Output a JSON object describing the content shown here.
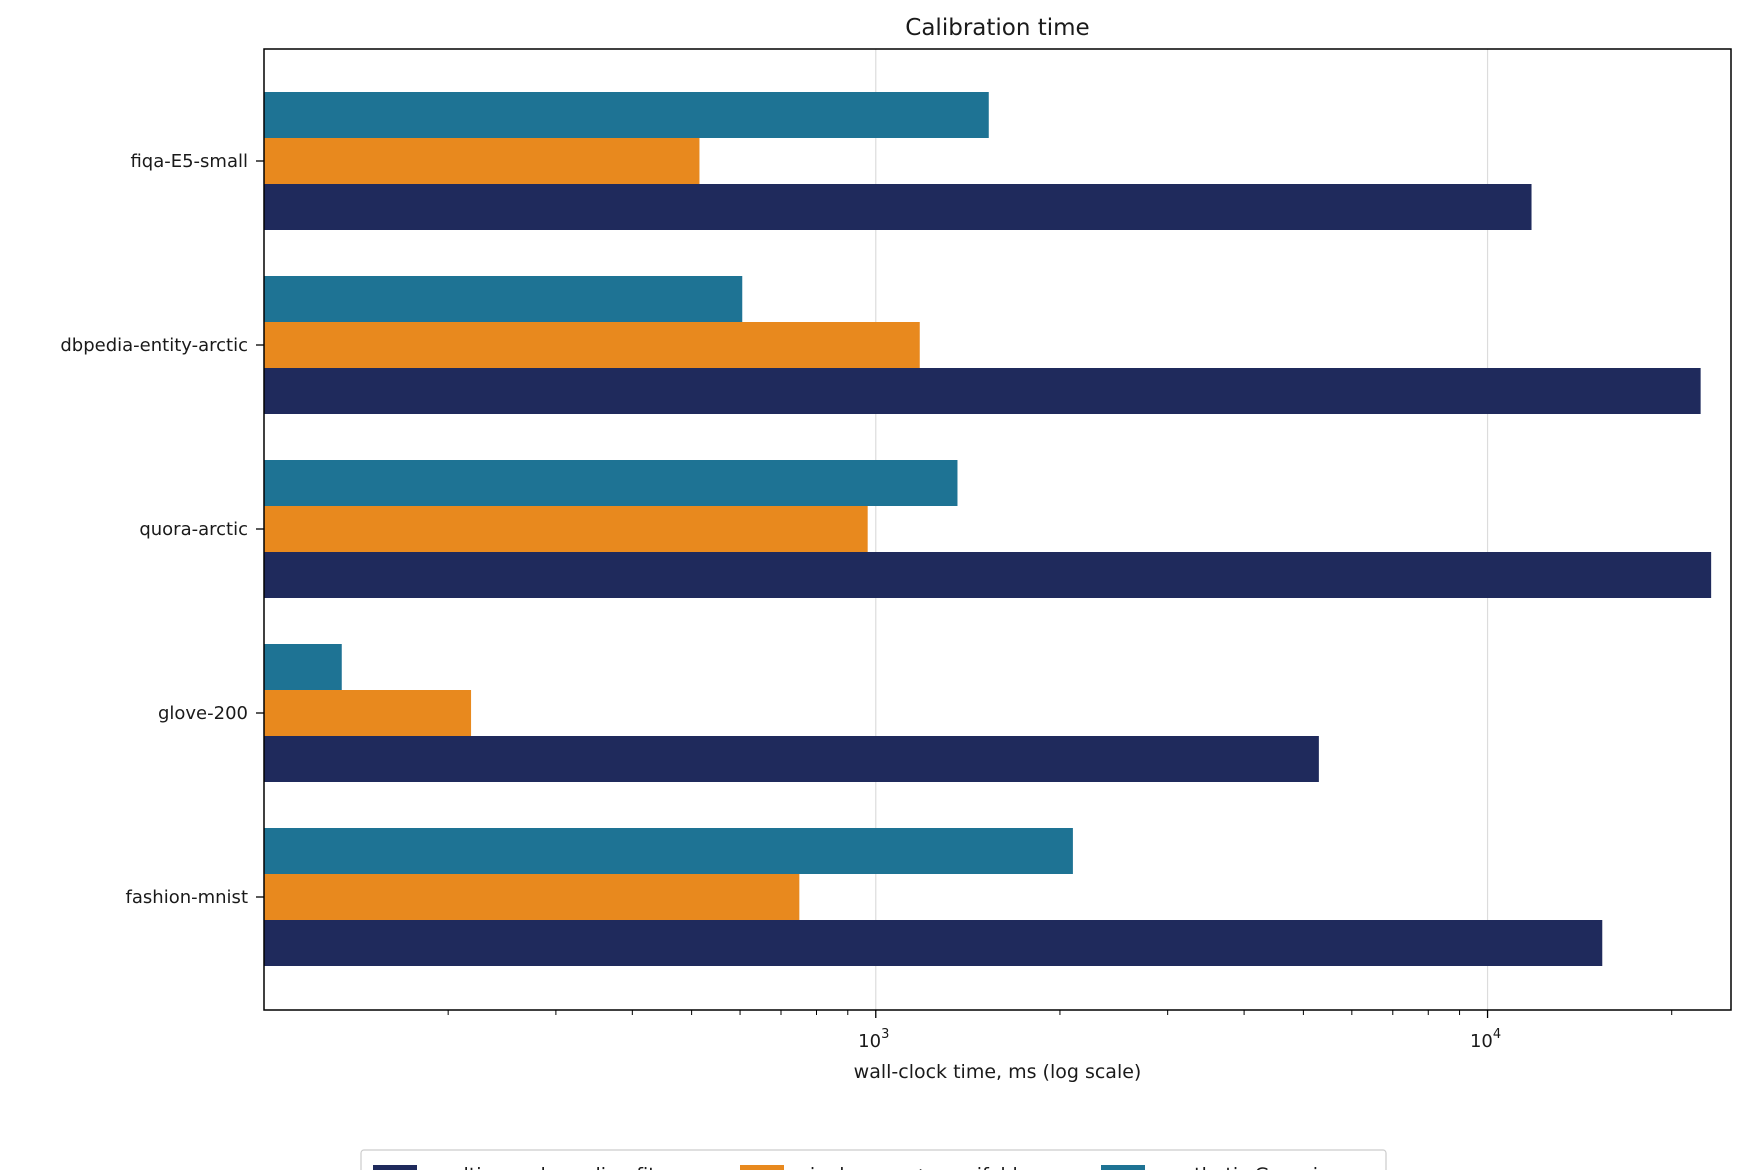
{
  "chart_data": {
    "type": "bar",
    "orientation": "horizontal",
    "title": "Calibration time",
    "xlabel": "wall-clock time, ms (log scale)",
    "ylabel": "",
    "x_scale": "log",
    "xlim": [
      100,
      25000
    ],
    "x_ticks": [
      {
        "value": 1000,
        "base": "10",
        "exp": "3"
      },
      {
        "value": 10000,
        "base": "10",
        "exp": "4"
      }
    ],
    "grid": "x-major",
    "legend_position": "bottom-center",
    "categories": [
      "fiqa-E5-small",
      "dbpedia-entity-arctic",
      "quora-arctic",
      "glove-200",
      "fashion-mnist"
    ],
    "series": [
      {
        "name": "multi-sample scaling fit",
        "color": "#1f2a5c",
        "values": [
          11800,
          22300,
          23200,
          5300,
          15400
        ]
      },
      {
        "name": "single-pass + manifold",
        "color": "#e8891e",
        "values": [
          515,
          1180,
          970,
          218,
          750
        ]
      },
      {
        "name": "synthetic Gaussian",
        "color": "#1e7394",
        "values": [
          1530,
          605,
          1360,
          134,
          2100
        ]
      }
    ]
  }
}
